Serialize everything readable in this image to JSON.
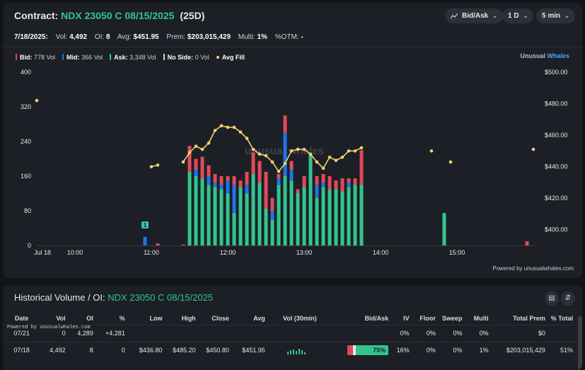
{
  "header": {
    "label": "Contract:",
    "contract": "NDX 23050 C 08/15/2025",
    "dte": "(25D)",
    "controls": [
      "Bid/Ask",
      "1 D",
      "5 min"
    ]
  },
  "stats": {
    "date": "7/18/2025:",
    "vol_label": "Vol:",
    "vol": "4,492",
    "oi_label": "OI:",
    "oi": "8",
    "avg_label": "Avg:",
    "avg": "$451.95",
    "prem_label": "Prem:",
    "prem": "$203,015,429",
    "multi_label": "Multi:",
    "multi": "1%",
    "otm_label": "%OTM:",
    "otm": "-"
  },
  "legend": {
    "bid_label": "Bid:",
    "bid": "778 Vol",
    "mid_label": "Mid:",
    "mid": "366 Vol",
    "ask_label": "Ask:",
    "ask": "3,348 Vol",
    "noside_label": "No Side:",
    "noside": "0 Vol",
    "avgfill_label": "Avg Fill"
  },
  "brand": {
    "part1": "Unusual ",
    "part2": "Whales"
  },
  "watermark": "unusual whales",
  "powered": "Powered by unusualwhales.com",
  "colors": {
    "bid": "#e04a5a",
    "mid": "#1f73e6",
    "ask": "#33c48e",
    "avg_fill": "#f2d16b",
    "accent": "#33c48e"
  },
  "chart_data": {
    "type": "bar",
    "stacked": true,
    "x_ticks": [
      "Jul 18",
      "10:00",
      "11:00",
      "12:00",
      "13:00",
      "14:00",
      "15:00"
    ],
    "y_left": {
      "ticks": [
        "0",
        "80",
        "160",
        "240",
        "320",
        "400"
      ],
      "range": [
        0,
        400
      ]
    },
    "y_right": {
      "ticks": [
        "$400.00",
        "$420.00",
        "$440.00",
        "$460.00",
        "$480.00",
        "$500.00"
      ],
      "range": [
        390,
        500
      ]
    },
    "annotation": "1",
    "series": [
      {
        "name": "Ask",
        "color": "#33c48e"
      },
      {
        "name": "Mid",
        "color": "#1f73e6"
      },
      {
        "name": "Bid",
        "color": "#e04a5a"
      },
      {
        "name": "Avg Fill",
        "color": "#f2d16b"
      }
    ],
    "bars": [
      {
        "t": "10:55",
        "ask": 0,
        "mid": 20,
        "bid": 0
      },
      {
        "t": "11:05",
        "ask": 0,
        "mid": 0,
        "bid": 5
      },
      {
        "t": "11:25",
        "ask": 0,
        "mid": 0,
        "bid": 2
      },
      {
        "t": "11:30",
        "ask": 170,
        "mid": 0,
        "bid": 60
      },
      {
        "t": "11:35",
        "ask": 160,
        "mid": 15,
        "bid": 25
      },
      {
        "t": "11:40",
        "ask": 155,
        "mid": 0,
        "bid": 50
      },
      {
        "t": "11:45",
        "ask": 140,
        "mid": 20,
        "bid": 25
      },
      {
        "t": "11:50",
        "ask": 135,
        "mid": 10,
        "bid": 20
      },
      {
        "t": "11:55",
        "ask": 130,
        "mid": 10,
        "bid": 20
      },
      {
        "t": "12:00",
        "ask": 120,
        "mid": 30,
        "bid": 10
      },
      {
        "t": "12:05",
        "ask": 75,
        "mid": 65,
        "bid": 20
      },
      {
        "t": "12:10",
        "ask": 135,
        "mid": 0,
        "bid": 15
      },
      {
        "t": "12:15",
        "ask": 120,
        "mid": 20,
        "bid": 30
      },
      {
        "t": "12:20",
        "ask": 165,
        "mid": 0,
        "bid": 50
      },
      {
        "t": "12:25",
        "ask": 145,
        "mid": 0,
        "bid": 50
      },
      {
        "t": "12:30",
        "ask": 85,
        "mid": 0,
        "bid": 85
      },
      {
        "t": "12:35",
        "ask": 60,
        "mid": 20,
        "bid": 30
      },
      {
        "t": "12:40",
        "ask": 140,
        "mid": 15,
        "bid": 10
      },
      {
        "t": "12:45",
        "ask": 160,
        "mid": 100,
        "bid": 40
      },
      {
        "t": "12:50",
        "ask": 150,
        "mid": 25,
        "bid": 20
      },
      {
        "t": "12:55",
        "ask": 120,
        "mid": 0,
        "bid": 10
      },
      {
        "t": "13:00",
        "ask": 135,
        "mid": 0,
        "bid": 25
      },
      {
        "t": "13:05",
        "ask": 210,
        "mid": 0,
        "bid": 0
      },
      {
        "t": "13:10",
        "ask": 110,
        "mid": 30,
        "bid": 20
      },
      {
        "t": "13:15",
        "ask": 135,
        "mid": 10,
        "bid": 20
      },
      {
        "t": "13:20",
        "ask": 130,
        "mid": 0,
        "bid": 30
      },
      {
        "t": "13:25",
        "ask": 130,
        "mid": 0,
        "bid": 20
      },
      {
        "t": "13:30",
        "ask": 125,
        "mid": 0,
        "bid": 30
      },
      {
        "t": "13:35",
        "ask": 135,
        "mid": 10,
        "bid": 10
      },
      {
        "t": "13:40",
        "ask": 140,
        "mid": 0,
        "bid": 15
      },
      {
        "t": "13:45",
        "ask": 140,
        "mid": 0,
        "bid": 80
      },
      {
        "t": "14:50",
        "ask": 75,
        "mid": 0,
        "bid": 0
      },
      {
        "t": "15:55",
        "ask": 0,
        "mid": 0,
        "bid": 10
      }
    ],
    "avg_fill": [
      {
        "t": "9:30",
        "v": 482
      },
      {
        "t": "11:00",
        "v": 440
      },
      {
        "t": "11:05",
        "v": 441
      },
      {
        "t": "11:25",
        "v": 443
      },
      {
        "t": "11:30",
        "v": 449
      },
      {
        "t": "11:35",
        "v": 453
      },
      {
        "t": "11:40",
        "v": 451
      },
      {
        "t": "11:45",
        "v": 455
      },
      {
        "t": "11:50",
        "v": 463
      },
      {
        "t": "11:55",
        "v": 466
      },
      {
        "t": "12:00",
        "v": 465
      },
      {
        "t": "12:05",
        "v": 465
      },
      {
        "t": "12:10",
        "v": 462
      },
      {
        "t": "12:15",
        "v": 458
      },
      {
        "t": "12:20",
        "v": 451
      },
      {
        "t": "12:25",
        "v": 448
      },
      {
        "t": "12:30",
        "v": 447
      },
      {
        "t": "12:35",
        "v": 443
      },
      {
        "t": "12:40",
        "v": 437
      },
      {
        "t": "12:45",
        "v": 442
      },
      {
        "t": "12:50",
        "v": 450
      },
      {
        "t": "12:55",
        "v": 451
      },
      {
        "t": "13:00",
        "v": 451
      },
      {
        "t": "13:05",
        "v": 448
      },
      {
        "t": "13:10",
        "v": 443
      },
      {
        "t": "13:15",
        "v": 439
      },
      {
        "t": "13:20",
        "v": 446
      },
      {
        "t": "13:25",
        "v": 444
      },
      {
        "t": "13:30",
        "v": 446
      },
      {
        "t": "13:35",
        "v": 450
      },
      {
        "t": "13:40",
        "v": 450
      },
      {
        "t": "13:45",
        "v": 452
      },
      {
        "t": "14:40",
        "v": 450
      },
      {
        "t": "14:55",
        "v": 443
      },
      {
        "t": "16:00",
        "v": 451
      }
    ]
  },
  "history": {
    "title": "Historical Volume / OI:",
    "contract": "NDX 23050 C 08/15/2025",
    "powered_note": "Powered by unusualwhales.com",
    "columns": [
      "Date",
      "Vol",
      "OI",
      "%",
      "Low",
      "High",
      "Close",
      "Avg",
      "Vol (30min)",
      "Bid/Ask",
      "IV",
      "Floor",
      "Sweep",
      "Multi",
      "Total Prem",
      "% Total"
    ],
    "rows": [
      {
        "date": "07/21",
        "vol": "0",
        "oi": "4,289",
        "oi_change": "+4,281",
        "low": "",
        "high": "",
        "close": "",
        "avg": "",
        "bidask": "",
        "iv": "0%",
        "floor": "0%",
        "sweep": "0%",
        "multi": "0%",
        "total_prem": "$0",
        "pct_total": ""
      },
      {
        "date": "07/18",
        "vol": "4,492",
        "oi": "8",
        "oi_change": "0",
        "low": "$436.80",
        "high": "$485.20",
        "close": "$450.80",
        "avg": "$451.95",
        "bidask": "75%",
        "iv": "16%",
        "floor": "0%",
        "sweep": "0%",
        "multi": "1%",
        "total_prem": "$203,015,429",
        "pct_total": "51%"
      }
    ]
  }
}
